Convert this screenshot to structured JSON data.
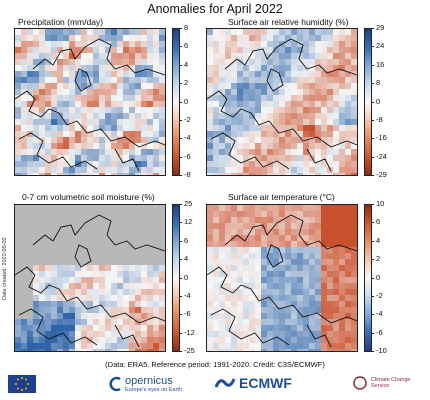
{
  "title": "Anomalies for April 2022",
  "panels": [
    {
      "title": "Precipitation (mm/day)",
      "colorbar": {
        "ticks": [
          "8",
          "6",
          "4",
          "2",
          "0",
          "-2",
          "-4",
          "-6",
          "-8"
        ],
        "top": "#1e3d7a",
        "bottom": "#b3391b"
      }
    },
    {
      "title": "Surface air relative humidity (%)",
      "colorbar": {
        "ticks": [
          "29",
          "24",
          "16",
          "8",
          "0",
          "-8",
          "-16",
          "-24",
          "-29"
        ],
        "top": "#1e3d7a",
        "bottom": "#b3391b"
      }
    },
    {
      "title": "0-7 cm volumetric soil moisture (%)",
      "colorbar": {
        "ticks": [
          "25",
          "12",
          "6",
          "4",
          "0",
          "-4",
          "-6",
          "-12",
          "-25"
        ],
        "top": "#1e3d7a",
        "bottom": "#b3391b"
      }
    },
    {
      "title": "Surface air temperature (°C)",
      "colorbar": {
        "ticks": [
          "10",
          "6",
          "4",
          "2",
          "0",
          "-2",
          "-4",
          "-6",
          "-10"
        ],
        "top": "#b3391b",
        "bottom": "#1e3d7a"
      }
    }
  ],
  "side_note": "Date created: 2022-05-02",
  "footer_note": "(Data: ERA5.  Reference period: 1991-2020.  Credit: C3S/ECMWF)",
  "logos": {
    "copernicus": "opernicus",
    "copernicus_sub": "Europe's eyes on Earth",
    "ecmwf": "ECMWF",
    "c3s": "Climate Change Service"
  },
  "colors": {
    "warm": "#d9603b",
    "cool": "#4a7fbf",
    "land_missing": "#b8b8b8"
  },
  "chart_data": [
    {
      "type": "heatmap",
      "title": "Precipitation (mm/day)",
      "variable": "precipitation anomaly",
      "range": [
        -8,
        8
      ],
      "colorbar_ticks": [
        8,
        6,
        4,
        2,
        0,
        -2,
        -4,
        -6,
        -8
      ]
    },
    {
      "type": "heatmap",
      "title": "Surface air relative humidity (%)",
      "variable": "relative humidity anomaly",
      "range": [
        -29,
        29
      ],
      "colorbar_ticks": [
        29,
        24,
        16,
        8,
        0,
        -8,
        -16,
        -24,
        -29
      ]
    },
    {
      "type": "heatmap",
      "title": "0-7 cm volumetric soil moisture (%)",
      "variable": "soil moisture anomaly",
      "range": [
        -25,
        25
      ],
      "colorbar_ticks": [
        25,
        12,
        6,
        4,
        0,
        -4,
        -6,
        -12,
        -25
      ]
    },
    {
      "type": "heatmap",
      "title": "Surface air temperature (°C)",
      "variable": "temperature anomaly",
      "range": [
        -10,
        10
      ],
      "colorbar_ticks": [
        10,
        6,
        4,
        2,
        0,
        -2,
        -4,
        -6,
        -10
      ]
    }
  ]
}
